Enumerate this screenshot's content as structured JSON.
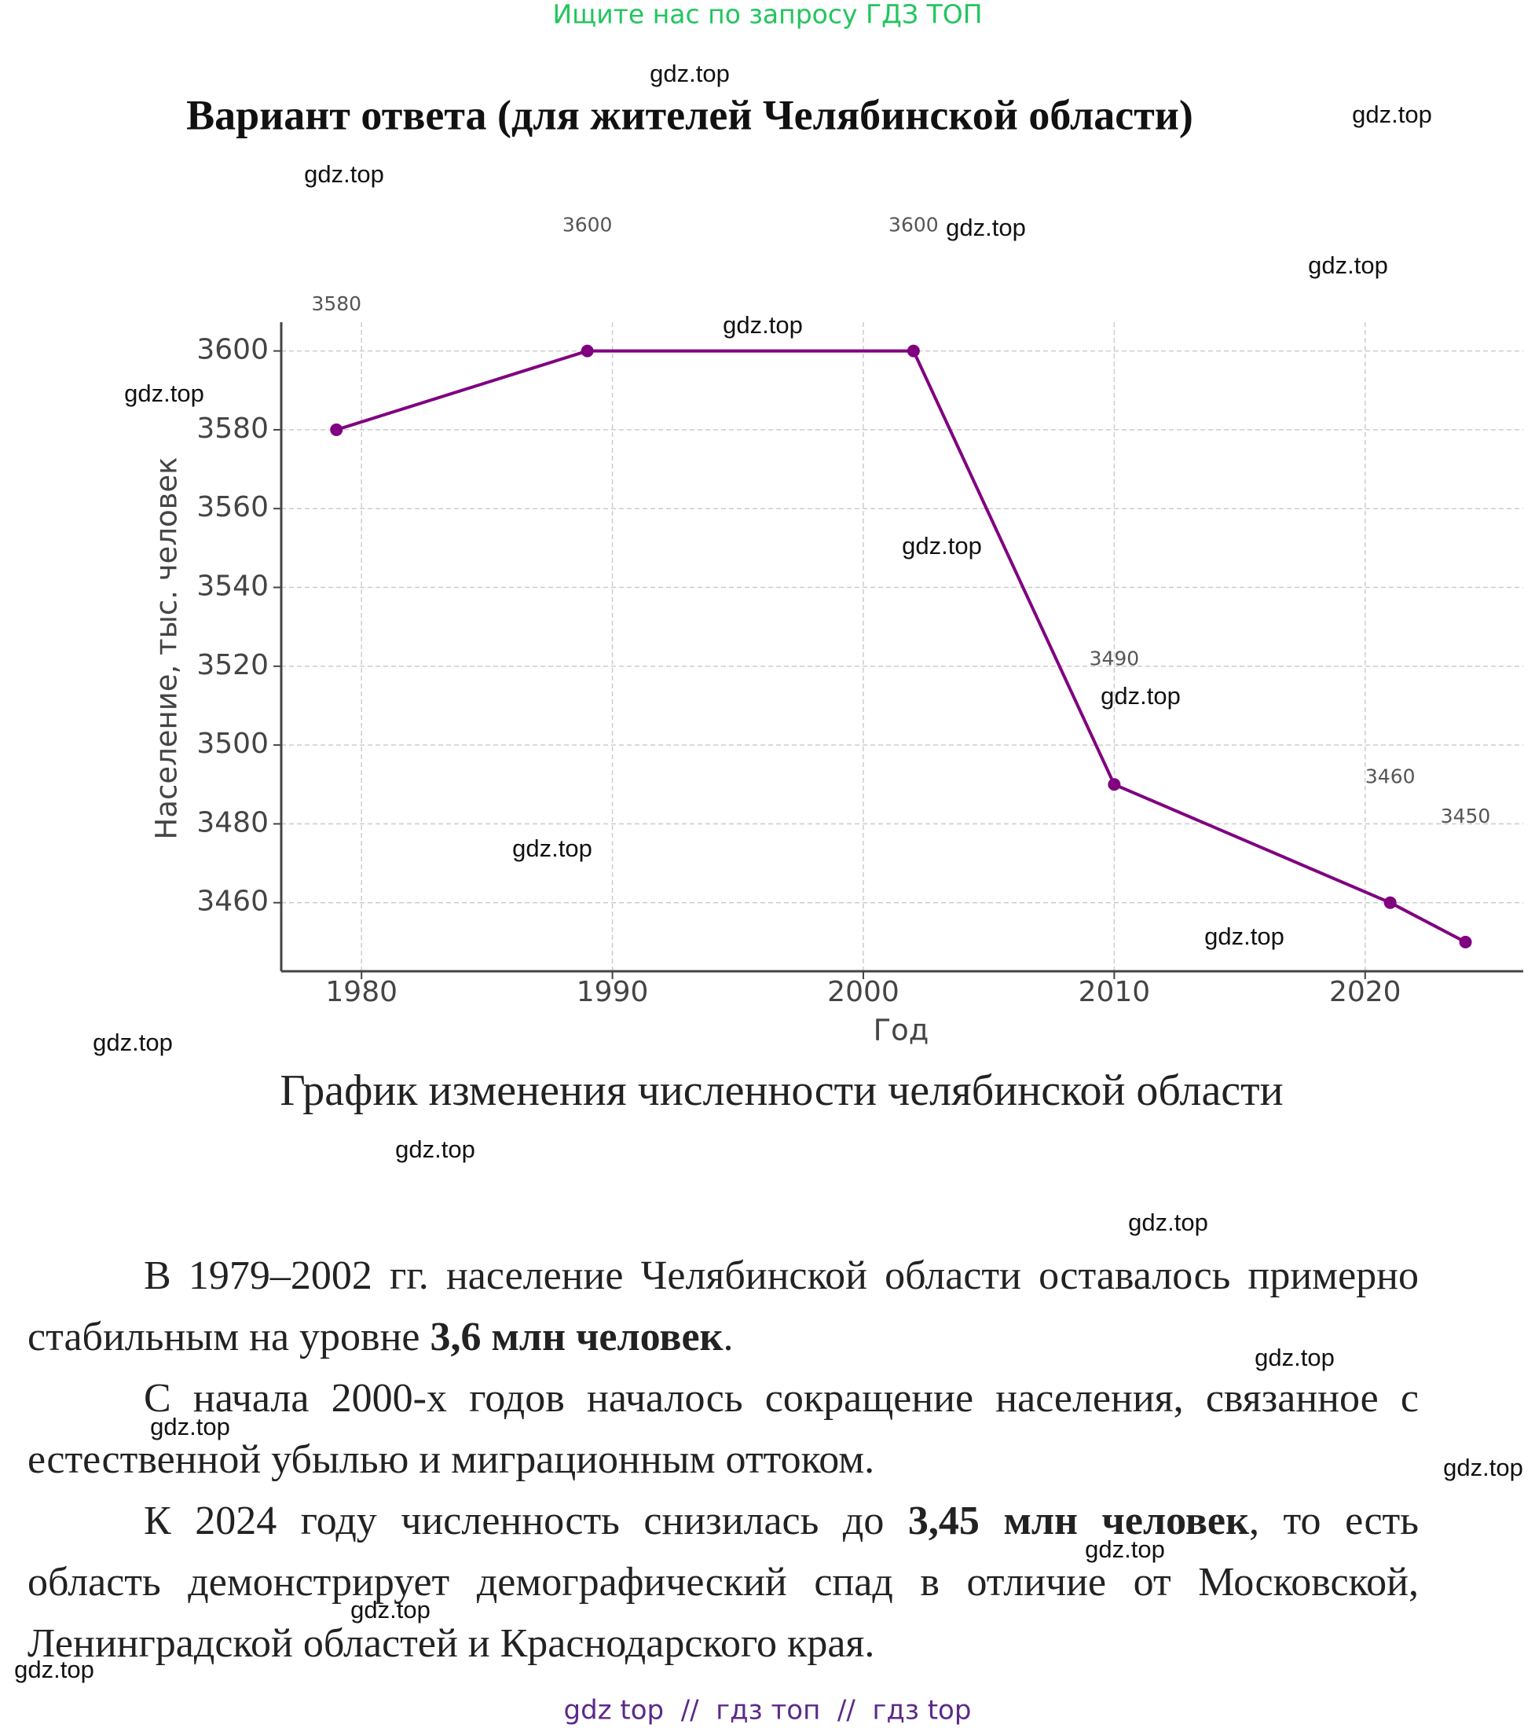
{
  "header": {
    "search_hint": "Ищите нас по запросу ГДЗ ТОП",
    "title": "Вариант ответа (для жителей Челябинской области)"
  },
  "chart_data": {
    "type": "line",
    "x_label": "Год",
    "y_label": "Население, тыс. человек",
    "caption": "График изменения численности челябинской области",
    "x": [
      1979,
      1989,
      2002,
      2010,
      2021,
      2024
    ],
    "series": [
      {
        "name": "Население",
        "color": "#800080",
        "values": [
          3580,
          3600,
          3600,
          3490,
          3460,
          3450
        ]
      }
    ],
    "xlim": [
      1976.8,
      2026.3
    ],
    "xticks": [
      1980,
      1990,
      2000,
      2010,
      2020
    ],
    "ylim": [
      3442.6,
      3607.3
    ],
    "yticks": [
      3460,
      3480,
      3500,
      3520,
      3540,
      3560,
      3580,
      3600
    ],
    "grid": true,
    "data_labels": true
  },
  "text": {
    "paragraphs": [
      [
        {
          "text": "В 1979–2002 гг. население Челябинской области оставалось примерно стабильным на уровне "
        },
        {
          "text": "3,6 млн человек",
          "bold": true
        },
        {
          "text": "."
        }
      ],
      [
        {
          "text": "С начала 2000-х годов началось сокращение населения, связанное с естественной убылью и миграционным оттоком."
        }
      ],
      [
        {
          "text": "К 2024 году численность снизилась до "
        },
        {
          "text": "3,45 млн человек",
          "bold": true
        },
        {
          "text": ", то есть область демонстрирует демографический спад в отличие от Московской, Ленинградской областей и Краснодарского края."
        }
      ]
    ]
  },
  "watermarks": [
    "gdz.top",
    "gdz.top",
    "gdz.top",
    "gdz.top",
    "gdz.top",
    "gdz.top",
    "gdz.top",
    "gdz.top",
    "gdz.top",
    "gdz.top",
    "gdz.top",
    "gdz.top",
    "gdz.top",
    "gdz.top",
    "gdz.top",
    "gdz.top",
    "gdz.top",
    "gdz.top",
    "gdz.top",
    "gdz.top"
  ],
  "footer": "gdz top  //  гдз топ  //  гдз top"
}
